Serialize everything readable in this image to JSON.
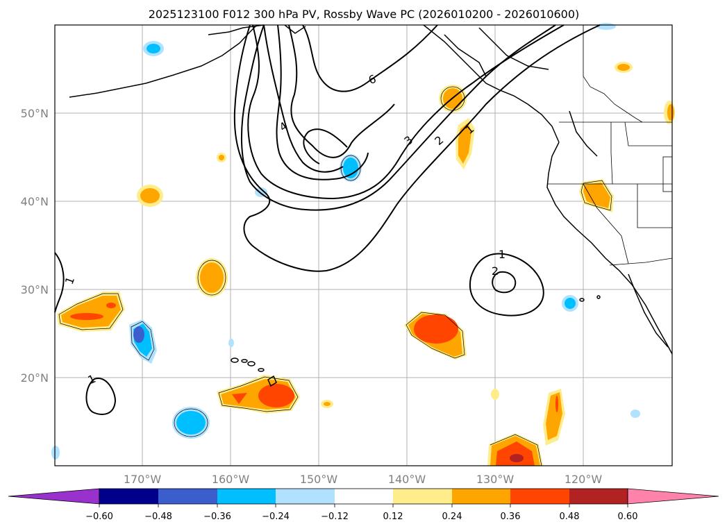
{
  "title": "2025123100 F012 300 hPa PV, Rossby Wave PC (2026010200 - 2026010600)",
  "lat_labels": [
    "50°N",
    "40°N",
    "30°N",
    "20°N"
  ],
  "lon_labels": [
    "170°W",
    "160°W",
    "150°W",
    "140°W",
    "130°W",
    "120°W"
  ],
  "pv_contour_labels": [
    "6",
    "4",
    "3",
    "2",
    "1",
    "1",
    "2",
    "1",
    "1"
  ],
  "colorbar": {
    "ticks": [
      "−0.60",
      "−0.48",
      "−0.36",
      "−0.24",
      "−0.12",
      "0.12",
      "0.24",
      "0.36",
      "0.48",
      "0.60"
    ],
    "colors": [
      "#9932cc",
      "#00008b",
      "#3a5fcd",
      "#00bfff",
      "#b0e2ff",
      "#ffffff",
      "#ffec8b",
      "#ffa500",
      "#ff4500",
      "#b22222",
      "#ff82ab"
    ]
  }
}
